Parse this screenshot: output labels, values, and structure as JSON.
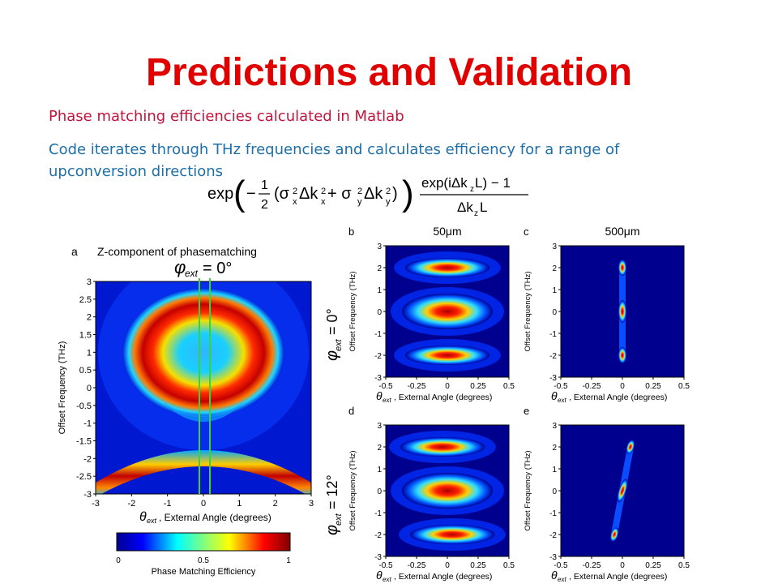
{
  "slide": {
    "title": "Predictions and Validation",
    "bullet1": "Phase matching efficiencies calculated in Matlab",
    "bullet2": "Code iterates through THz frequencies and calculates efficiency for a range of upconversion directions"
  },
  "formula": {
    "exp1": "exp",
    "minus": "−",
    "frac_num": "1",
    "frac_den": "2",
    "term": "(σ",
    "sub_x": "x",
    "term_mid": "Δk",
    "sub_x2": "x",
    "plus": " + σ",
    "sub_y": "y",
    "term_mid2": "Δk",
    "sub_y2": "y",
    "close": ")",
    "num": "exp(iΔk",
    "num_sub": "z",
    "num_tail": "L) − 1",
    "den": "Δk",
    "den_sub": "z",
    "den_tail": "L",
    "sup": "2"
  },
  "figure": {
    "panel_a": {
      "label": "a",
      "title": "Z-component of phasematching",
      "phi": "φ",
      "phi_sub": "ext",
      "phi_val": "= 0°",
      "xlabel_theta": "θ",
      "xlabel_sub": "ext",
      "xlabel": ", External Angle (degrees)",
      "ylabel": "Offset Frequency (THz)",
      "xticks": [
        "-3",
        "-2",
        "-1",
        "0",
        "1",
        "2",
        "3"
      ],
      "yticks": [
        "3",
        "2.5",
        "2",
        "1.5",
        "1",
        "0.5",
        "0",
        "-0.5",
        "-1",
        "-1.5",
        "-2",
        "-2.5",
        "-3"
      ]
    },
    "panel_b": {
      "label": "b",
      "title": "50μm"
    },
    "panel_c": {
      "label": "c",
      "title": "500μm"
    },
    "panel_d": {
      "label": "d"
    },
    "panel_e": {
      "label": "e"
    },
    "row_label_top": {
      "phi": "φ",
      "sub": "ext",
      "val": "= 0°"
    },
    "row_label_bottom": {
      "phi": "φ",
      "sub": "ext",
      "val": "= 12°"
    },
    "small_ylabel": "Offset Frequency (THz)",
    "small_xlabel_theta": "θ",
    "small_xlabel_sub": "ext",
    "small_xlabel": ", External Angle (degrees)",
    "small_xticks": [
      "-0.5",
      "-0.25",
      "0",
      "0.25",
      "0.5"
    ],
    "small_yticks": [
      "3",
      "2",
      "1",
      "0",
      "-1",
      "-2",
      "-3"
    ],
    "colorbar": {
      "ticks": [
        "0",
        "0.5",
        "1"
      ],
      "label": "Phase Matching Efficiency"
    }
  },
  "colors": {
    "title": "#e00000",
    "bullet1": "#c0143c",
    "bullet2": "#1f6fa8",
    "plot_background": "#00008f",
    "marker_lines": "#3cd23c"
  }
}
